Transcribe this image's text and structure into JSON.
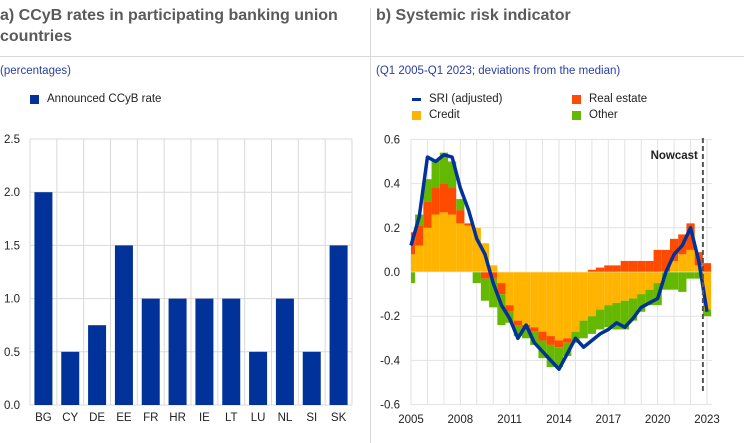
{
  "panel_a": {
    "title": "a) CCyB rates in participating banking union countries",
    "subtitle": "(percentages)",
    "legend": "Announced CCyB rate"
  },
  "panel_b": {
    "title": "b) Systemic risk indicator",
    "subtitle": "(Q1 2005-Q1 2023; deviations from the median)",
    "legend": {
      "sri": "SRI (adjusted)",
      "real_estate": "Real estate",
      "credit": "Credit",
      "other": "Other"
    },
    "annotation": "Nowcast"
  },
  "colors": {
    "bar": "#003299",
    "sri": "#003299",
    "credit": "#ffb400",
    "real_estate": "#ff4b00",
    "other": "#65b800"
  },
  "chart_data": [
    {
      "type": "bar",
      "title": "CCyB rates in participating banking union countries",
      "categories": [
        "BG",
        "CY",
        "DE",
        "EE",
        "FR",
        "HR",
        "IE",
        "LT",
        "LU",
        "NL",
        "SI",
        "SK"
      ],
      "values": [
        2.0,
        0.5,
        0.75,
        1.5,
        1.0,
        1.0,
        1.0,
        1.0,
        0.5,
        1.0,
        0.5,
        1.5
      ],
      "ylim": [
        0,
        2.5
      ],
      "yticks": [
        "0.0",
        "0.5",
        "1.0",
        "1.5",
        "2.0",
        "2.5"
      ],
      "legend": "top-left"
    },
    {
      "type": "bar+line",
      "title": "Systemic risk indicator",
      "xlim": [
        2005,
        2023.3
      ],
      "ylim": [
        -0.6,
        0.6
      ],
      "xticks": [
        "2005",
        "2008",
        "2011",
        "2014",
        "2017",
        "2020",
        "2023"
      ],
      "yticks": [
        "-0.6",
        "-0.4",
        "-0.2",
        "0.0",
        "0.2",
        "0.4",
        "0.6"
      ],
      "nowcast_x": 2022.75,
      "x": [
        2005,
        2005.5,
        2006,
        2006.5,
        2007,
        2007.5,
        2008,
        2008.5,
        2009,
        2009.5,
        2010,
        2010.5,
        2011,
        2011.5,
        2012,
        2012.5,
        2013,
        2013.5,
        2014,
        2014.5,
        2015,
        2015.5,
        2016,
        2016.5,
        2017,
        2017.5,
        2018,
        2018.5,
        2019,
        2019.5,
        2020,
        2020.5,
        2021,
        2021.5,
        2022,
        2022.5,
        2023
      ],
      "series": [
        {
          "name": "SRI (adjusted)",
          "kind": "line",
          "values": [
            0.12,
            0.25,
            0.52,
            0.5,
            0.53,
            0.52,
            0.38,
            0.28,
            0.15,
            0.08,
            -0.05,
            -0.15,
            -0.21,
            -0.3,
            -0.24,
            -0.32,
            -0.36,
            -0.4,
            -0.44,
            -0.37,
            -0.3,
            -0.34,
            -0.31,
            -0.28,
            -0.26,
            -0.23,
            -0.25,
            -0.21,
            -0.16,
            -0.14,
            -0.12,
            0.0,
            0.08,
            0.12,
            0.2,
            0.05,
            -0.18
          ]
        },
        {
          "name": "Credit",
          "kind": "bar",
          "values": [
            0.08,
            0.12,
            0.2,
            0.26,
            0.27,
            0.26,
            0.22,
            0.21,
            0.2,
            0.13,
            0.03,
            -0.05,
            -0.15,
            -0.22,
            -0.24,
            -0.25,
            -0.27,
            -0.29,
            -0.31,
            -0.3,
            -0.27,
            -0.22,
            -0.2,
            -0.17,
            -0.15,
            -0.14,
            -0.13,
            -0.12,
            -0.1,
            -0.08,
            -0.05,
            0.0,
            0.05,
            0.08,
            0.1,
            0.03,
            -0.17
          ]
        },
        {
          "name": "Real estate",
          "kind": "bar",
          "values": [
            0.1,
            0.09,
            0.12,
            0.12,
            0.13,
            0.12,
            0.06,
            0.01,
            0.0,
            -0.03,
            -0.03,
            -0.05,
            -0.03,
            -0.02,
            -0.01,
            -0.02,
            -0.04,
            -0.04,
            -0.03,
            -0.02,
            0.0,
            0.0,
            0.01,
            0.02,
            0.03,
            0.03,
            0.05,
            0.05,
            0.05,
            0.05,
            0.1,
            0.1,
            0.1,
            0.09,
            0.12,
            0.06,
            0.04
          ]
        },
        {
          "name": "Other",
          "kind": "bar",
          "values": [
            -0.05,
            0.05,
            0.1,
            0.13,
            0.14,
            0.12,
            0.05,
            0.0,
            -0.05,
            -0.1,
            -0.13,
            -0.14,
            -0.05,
            -0.05,
            -0.05,
            -0.06,
            -0.08,
            -0.1,
            -0.09,
            -0.06,
            -0.05,
            -0.08,
            -0.08,
            -0.09,
            -0.1,
            -0.12,
            -0.13,
            -0.1,
            -0.08,
            -0.07,
            -0.1,
            -0.08,
            -0.08,
            -0.09,
            -0.03,
            -0.03,
            -0.03
          ]
        }
      ],
      "legend": "top"
    }
  ]
}
